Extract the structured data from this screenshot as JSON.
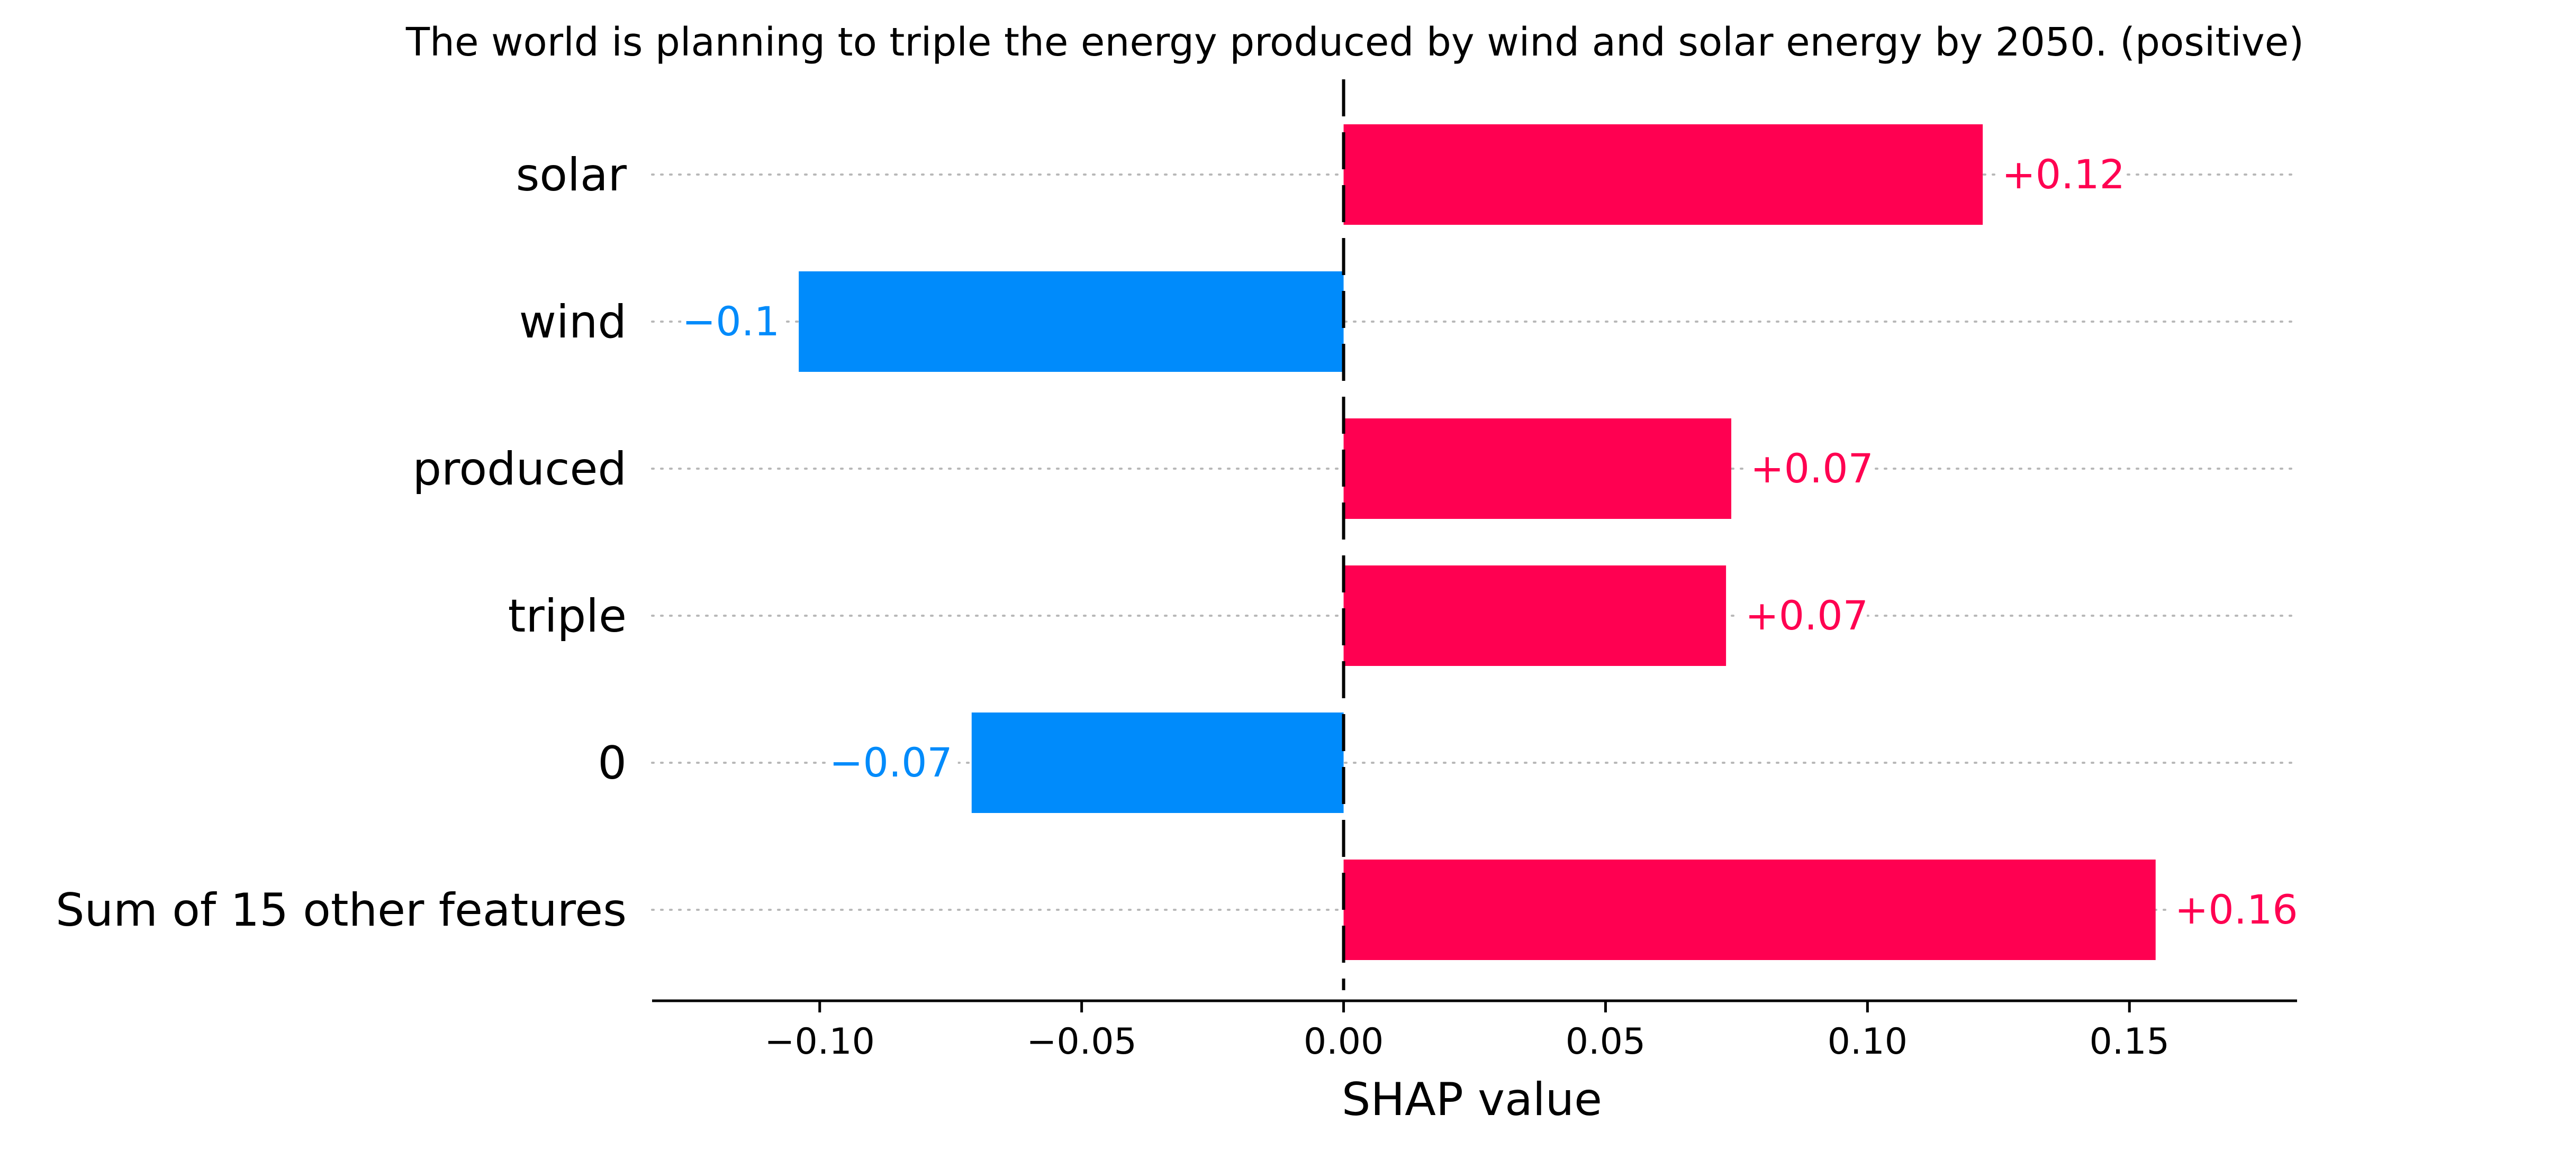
{
  "chart_data": {
    "type": "bar",
    "orientation": "horizontal",
    "title": "The world is planning to triple the energy produced by wind and solar energy by 2050.  (positive)",
    "xlabel": "SHAP value",
    "ylabel": "",
    "xlim": [
      -0.132,
      0.182
    ],
    "xticks": [
      -0.1,
      -0.05,
      0.0,
      0.05,
      0.1,
      0.15
    ],
    "xtick_labels": [
      "−0.10",
      "−0.05",
      "0.00",
      "0.05",
      "0.10",
      "0.15"
    ],
    "categories": [
      "solar",
      "wind",
      "produced",
      "triple",
      "0",
      "Sum of 15 other features"
    ],
    "values": [
      0.122,
      -0.104,
      0.074,
      0.073,
      -0.071,
      0.155
    ],
    "data_labels": [
      "+0.12",
      "−0.1",
      "+0.07",
      "+0.07",
      "−0.07",
      "+0.16"
    ],
    "colors": {
      "positive": "#ff0051",
      "negative": "#008bfb"
    },
    "grid": "horizontal-dotted",
    "legend": "none"
  }
}
